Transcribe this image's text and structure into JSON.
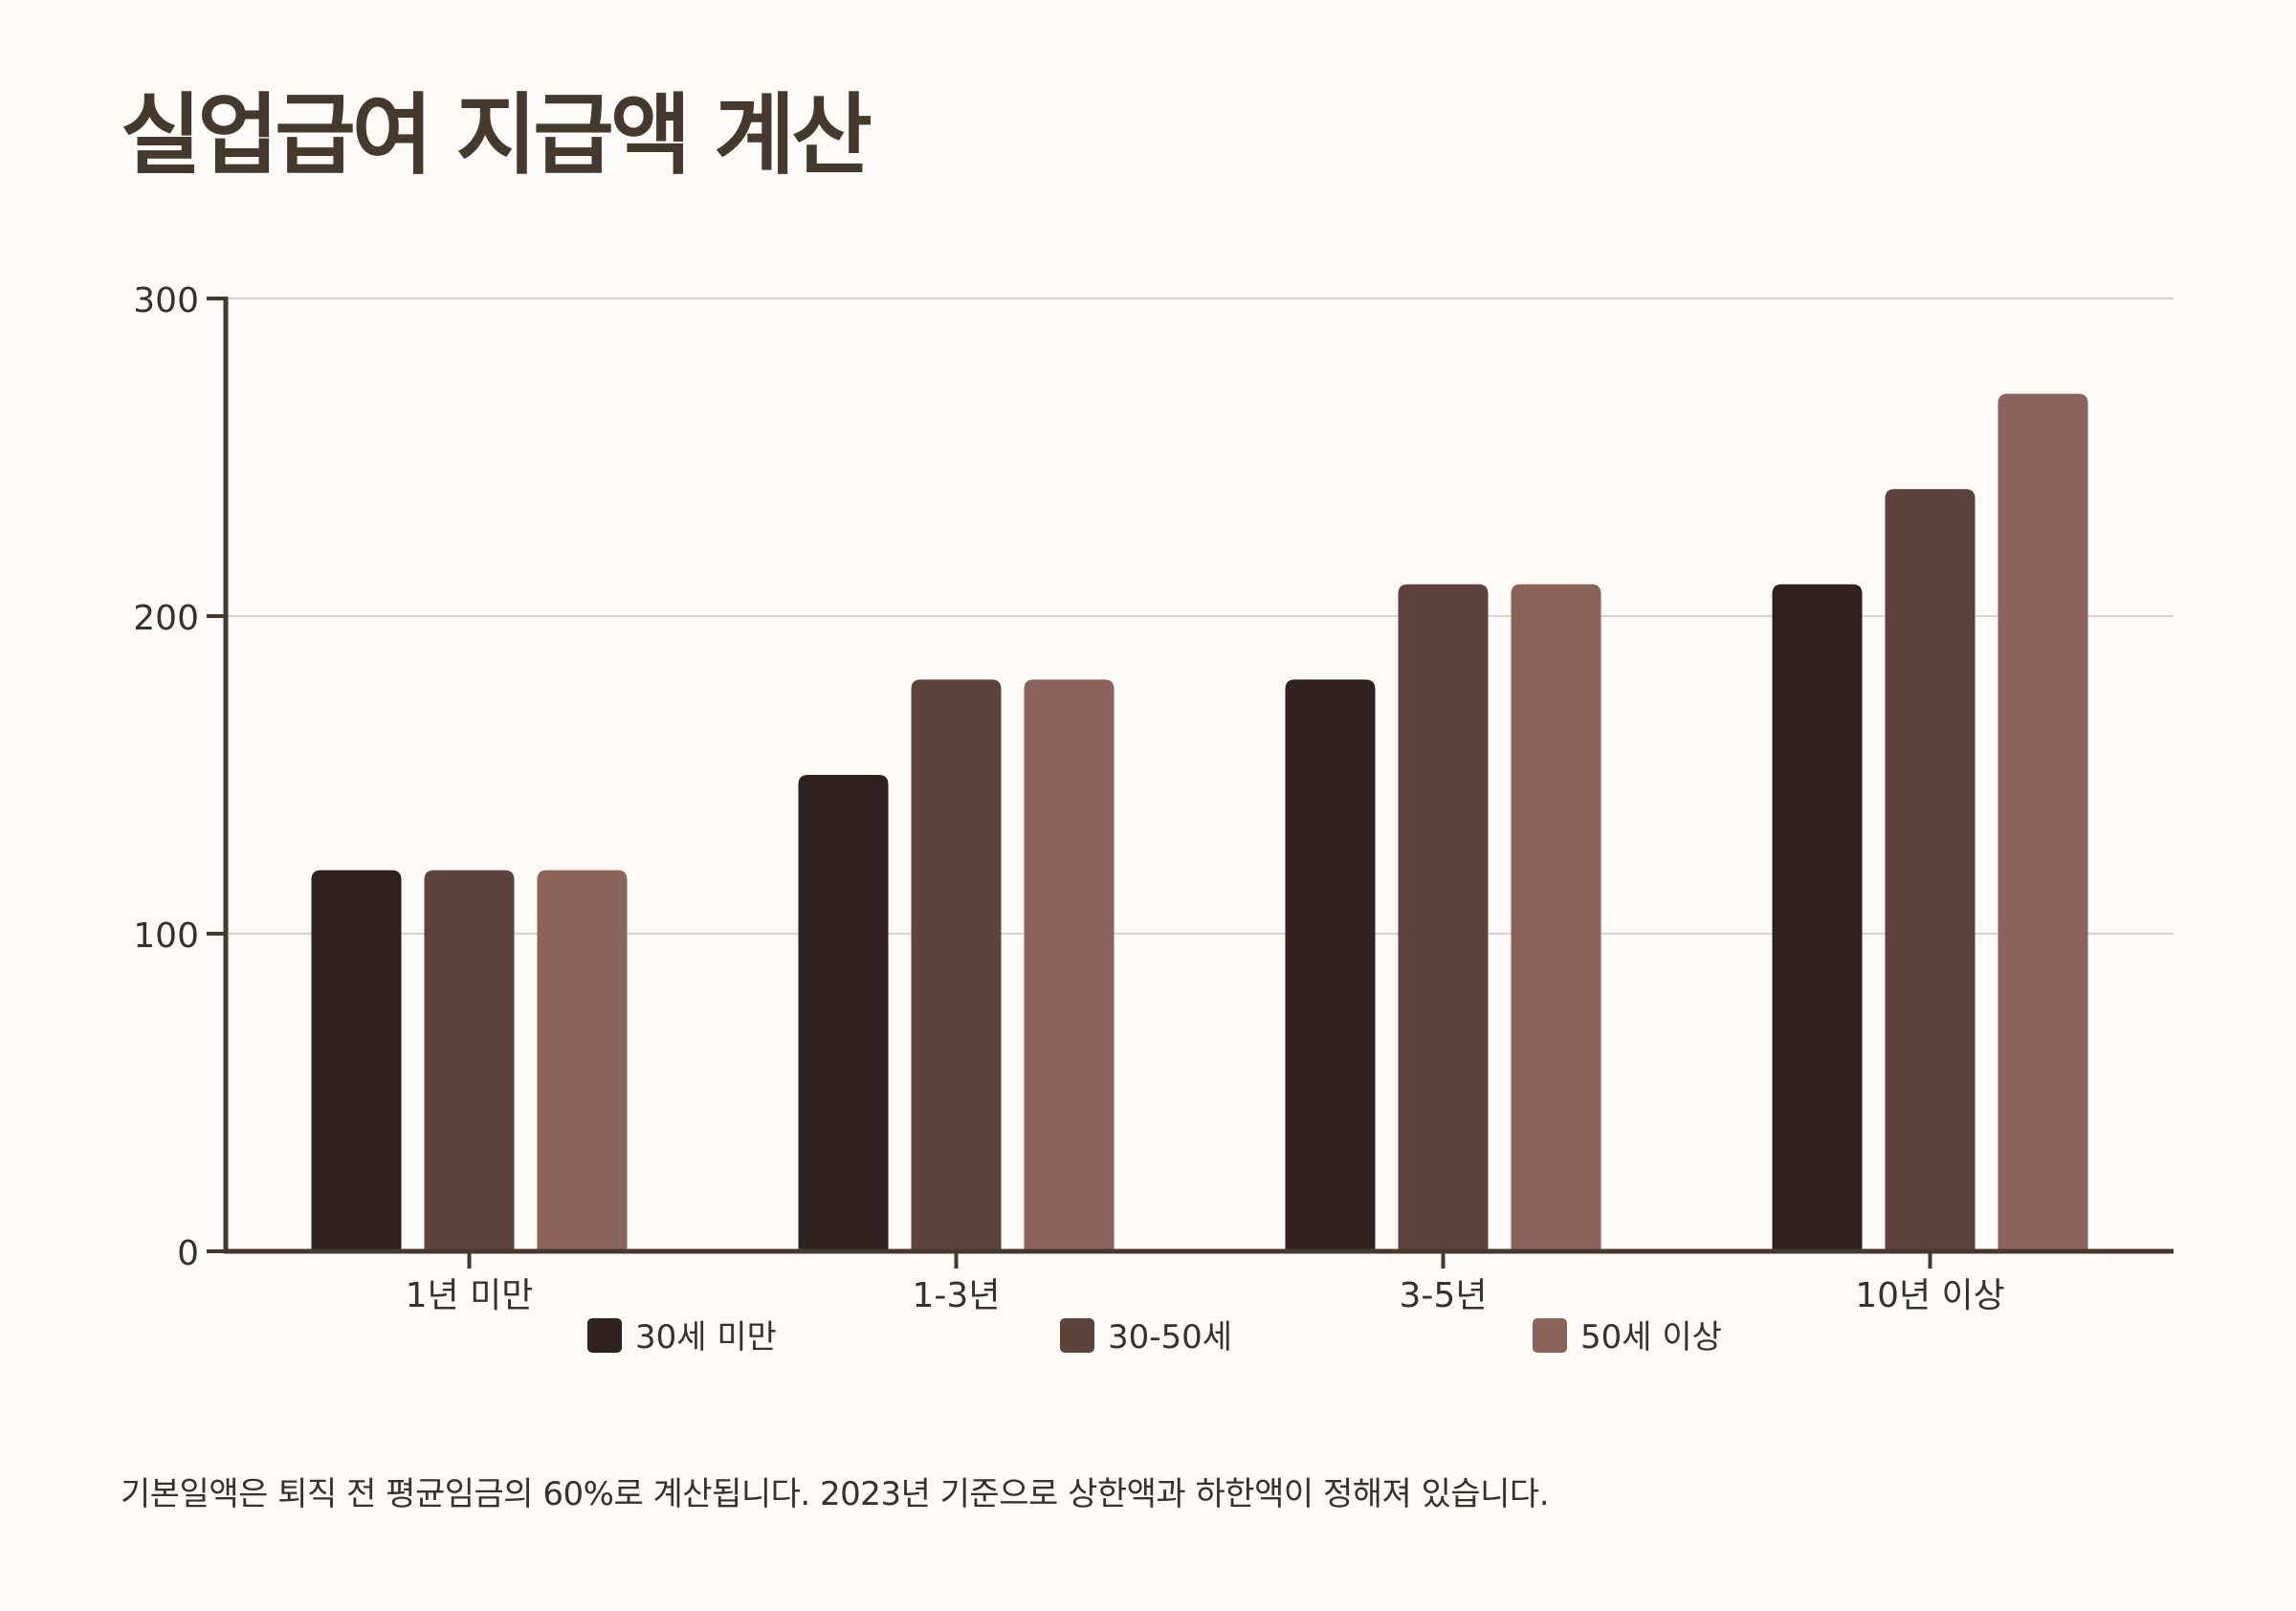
{
  "title": "실업급여 지급액 계산",
  "footnote": "기본일액은 퇴직 전 평균임금의 60%로 계산됩니다. 2023년 기준으로 상한액과 하한액이 정해져 있습니다.",
  "colors": {
    "background": "#fdfaf7",
    "text": "#45382c",
    "axis": "#45382c",
    "grid": "#d6d2cf"
  },
  "chart_data": {
    "type": "bar",
    "title": "실업급여 지급액 계산",
    "xlabel": "",
    "ylabel": "",
    "categories": [
      "1년 미만",
      "1-3년",
      "3-5년",
      "10년 이상"
    ],
    "series": [
      {
        "name": "30세 미만",
        "color": "#2f221e",
        "values": [
          120,
          150,
          180,
          210
        ]
      },
      {
        "name": "30-50세",
        "color": "#5d433c",
        "values": [
          120,
          180,
          210,
          240
        ]
      },
      {
        "name": "50세 이상",
        "color": "#8a645a",
        "values": [
          120,
          180,
          210,
          270
        ]
      }
    ],
    "ylim": [
      0,
      300
    ],
    "yticks": [
      0,
      100,
      200,
      300
    ],
    "grid": true,
    "legend": "bottom"
  }
}
